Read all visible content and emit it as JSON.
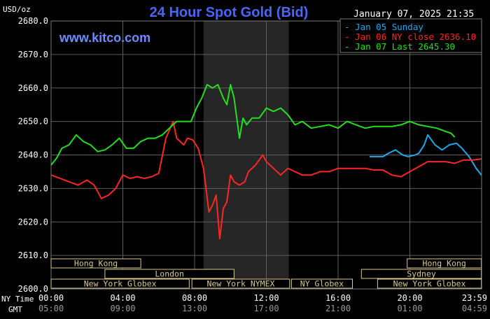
{
  "chart_data": {
    "type": "line",
    "title": "24 Hour Spot Gold (Bid)",
    "unit_label": "USD/oz",
    "watermark": "www.kitco.com",
    "timestamp": "January 07, 2025 21:35",
    "ylim": [
      2600,
      2680
    ],
    "y_ticks": [
      "2680.0",
      "2670.0",
      "2660.0",
      "2650.0",
      "2640.0",
      "2630.0",
      "2620.0",
      "2610.0",
      "2600.0"
    ],
    "x_tick_ny": [
      "00:00",
      "04:00",
      "08:00",
      "12:00",
      "16:00",
      "20:00",
      "23:59"
    ],
    "x_tick_gmt": [
      "05:00",
      "09:00",
      "13:00",
      "17:00",
      "21:00",
      "01:00",
      "04:59"
    ],
    "x_row_labels": [
      "NY Time",
      "GMT"
    ],
    "highlight_hours": [
      8.5,
      13.25
    ],
    "series": [
      {
        "name": "Jan 05 Sunday",
        "color": "#1ea9ea",
        "x": [
          17.75,
          18.5,
          18.8,
          19.2,
          19.6,
          19.9,
          20.3,
          20.5,
          20.8,
          21.0,
          21.4,
          21.8,
          22.2,
          22.6,
          22.9,
          23.3,
          23.7,
          23.99
        ],
        "y": [
          2639.5,
          2639.5,
          2640.5,
          2641.5,
          2640,
          2639.5,
          2640,
          2640.5,
          2643,
          2646,
          2643,
          2641.5,
          2643,
          2643.5,
          2642,
          2639.5,
          2636,
          2634
        ]
      },
      {
        "name": "Jan 06 NY close 2636.10",
        "color": "#ff2626",
        "x": [
          0,
          0.5,
          1,
          1.5,
          2,
          2.4,
          2.8,
          3.2,
          3.6,
          4,
          4.4,
          4.8,
          5.2,
          5.6,
          6,
          6.4,
          6.8,
          7,
          7.4,
          7.6,
          7.9,
          8.2,
          8.5,
          8.8,
          9.0,
          9.2,
          9.4,
          9.6,
          9.8,
          10.0,
          10.2,
          10.5,
          10.8,
          11,
          11.4,
          11.8,
          12,
          12.4,
          12.8,
          13.2,
          13.6,
          14,
          14.5,
          15,
          15.5,
          16,
          16.5,
          17,
          17.5,
          18,
          18.5,
          19,
          19.5,
          20,
          20.5,
          21,
          21.5,
          22,
          22.5,
          23,
          23.5,
          23.99
        ],
        "y": [
          2634,
          2633,
          2632,
          2631,
          2632.5,
          2631,
          2627,
          2628,
          2630,
          2634,
          2633,
          2633.5,
          2633,
          2633.5,
          2634.5,
          2645,
          2650,
          2645,
          2643,
          2645,
          2644.5,
          2642,
          2636,
          2623,
          2625,
          2628,
          2615,
          2624,
          2626,
          2634,
          2632,
          2631,
          2632,
          2635,
          2637,
          2640,
          2638,
          2636,
          2634,
          2636,
          2635,
          2634,
          2634,
          2635,
          2635,
          2636,
          2636,
          2636,
          2636,
          2635.5,
          2635.5,
          2634,
          2633.5,
          2635,
          2636.5,
          2638,
          2638,
          2638,
          2637.5,
          2638.5,
          2638.5,
          2638.8
        ]
      },
      {
        "name": "Jan 07 Last 2645.30",
        "color": "#22e01c",
        "x": [
          0,
          0.3,
          0.6,
          1,
          1.4,
          1.8,
          2.2,
          2.6,
          3,
          3.4,
          3.8,
          4.2,
          4.6,
          5,
          5.4,
          5.8,
          6.2,
          6.6,
          7,
          7.4,
          7.8,
          8.1,
          8.4,
          8.7,
          9.0,
          9.3,
          9.6,
          9.8,
          10.0,
          10.2,
          10.5,
          10.7,
          10.9,
          11.2,
          11.6,
          12,
          12.4,
          12.8,
          13.2,
          13.6,
          14,
          14.5,
          15,
          15.5,
          16,
          16.5,
          17,
          17.5,
          18,
          18.5,
          19,
          19.5,
          20,
          20.5,
          21,
          21.5,
          22,
          22.3,
          22.5
        ],
        "y": [
          2637,
          2639,
          2642,
          2643,
          2646,
          2644,
          2643,
          2641,
          2641.5,
          2643,
          2645,
          2642,
          2642,
          2644,
          2645,
          2645,
          2646,
          2648,
          2650,
          2650,
          2650,
          2654,
          2657,
          2661,
          2660,
          2661,
          2657,
          2655,
          2661,
          2657,
          2645,
          2651,
          2649,
          2651,
          2651,
          2654,
          2653,
          2654,
          2652,
          2649,
          2650,
          2648,
          2648.5,
          2649,
          2648,
          2650,
          2649,
          2648,
          2648.5,
          2648.5,
          2648.5,
          2649,
          2650,
          2649,
          2648.5,
          2648,
          2647,
          2646.5,
          2645.3
        ]
      }
    ],
    "sessions": [
      {
        "label": "Hong Kong",
        "row": 0,
        "x0": 0,
        "x1": 5
      },
      {
        "label": "London",
        "row": 1,
        "x0": 3,
        "x1": 10.2
      },
      {
        "label": "New York Globex",
        "row": 2,
        "x0": 0,
        "x1": 7.7
      },
      {
        "label": "New York NYMEX",
        "row": 2,
        "x0": 7.85,
        "x1": 13.3
      },
      {
        "label": "NY Globex",
        "row": 2,
        "x0": 13.4,
        "x1": 16.8
      },
      {
        "label": "Hong Kong",
        "row": 0,
        "x0": 19.85,
        "x1": 23.99
      },
      {
        "label": "Sydney",
        "row": 1,
        "x0": 17.3,
        "x1": 23.99
      },
      {
        "label": "New York Globex",
        "row": 2,
        "x0": 18.2,
        "x1": 23.99
      }
    ]
  }
}
